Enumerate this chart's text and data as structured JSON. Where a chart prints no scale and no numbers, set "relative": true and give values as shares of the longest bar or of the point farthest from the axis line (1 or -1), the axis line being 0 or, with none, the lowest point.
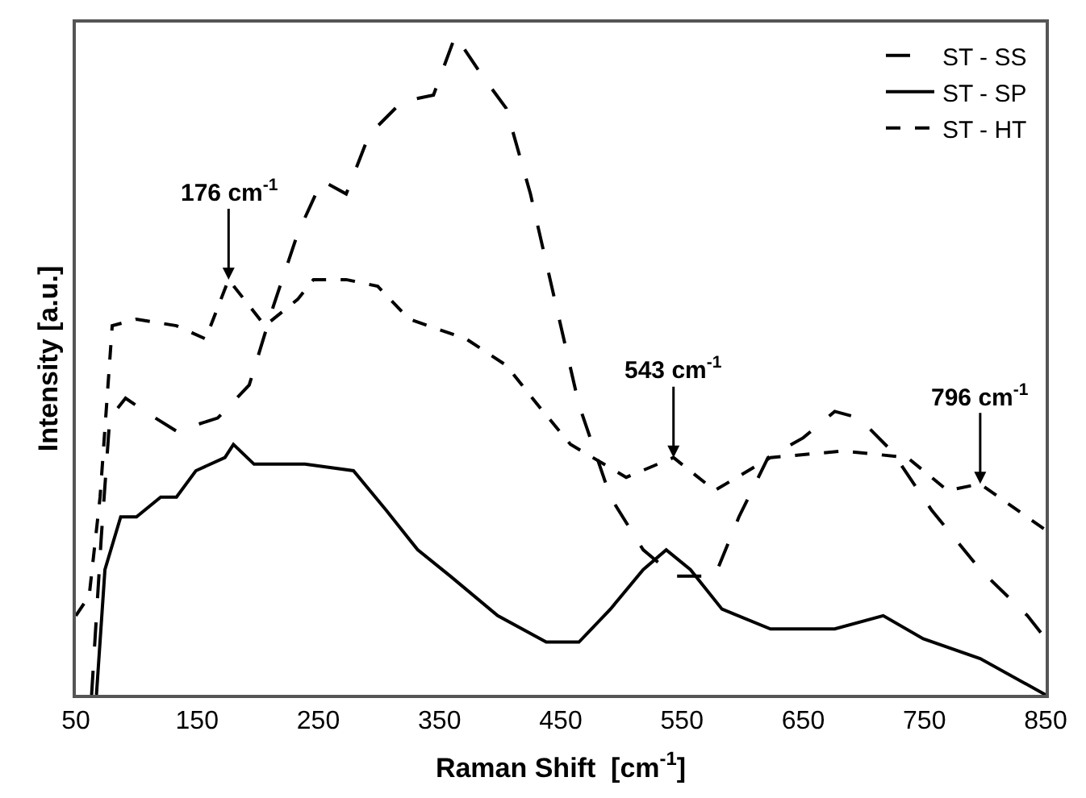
{
  "chart_data": {
    "type": "line",
    "relative": true,
    "xlabel": "Raman Shift  [cm$^{-1}$]",
    "ylabel": "Intensity [a.u.]",
    "xlim": [
      50,
      850
    ],
    "xticks": [
      50,
      150,
      250,
      350,
      450,
      550,
      650,
      750,
      850
    ],
    "legend": "top right",
    "marker": "none",
    "series": [
      {
        "name": "ST - SS",
        "color": "#000000",
        "line_style": "longdash",
        "x": [
          63,
          71,
          78,
          91,
          107,
          133,
          167,
          193,
          213,
          233,
          253,
          273,
          292,
          319,
          345,
          363,
          385,
          405,
          425,
          445,
          465,
          491,
          518,
          544,
          577,
          597,
          621,
          650,
          676,
          696,
          723,
          756,
          796,
          835,
          850
        ],
        "values": [
          0,
          0.24,
          0.42,
          0.45,
          0.43,
          0.4,
          0.42,
          0.47,
          0.59,
          0.7,
          0.78,
          0.76,
          0.85,
          0.9,
          0.91,
          1.0,
          0.94,
          0.89,
          0.76,
          0.6,
          0.44,
          0.3,
          0.22,
          0.18,
          0.18,
          0.27,
          0.36,
          0.39,
          0.43,
          0.42,
          0.37,
          0.28,
          0.19,
          0.12,
          0.085
        ]
      },
      {
        "name": "ST - SP",
        "color": "#000000",
        "line_style": "solid",
        "x": [
          67,
          74,
          87,
          100,
          120,
          133,
          149,
          173,
          180,
          197,
          239,
          279,
          306,
          332,
          359,
          398,
          438,
          465,
          491,
          518,
          537,
          557,
          583,
          623,
          676,
          716,
          749,
          796,
          850
        ],
        "values": [
          0,
          0.19,
          0.27,
          0.27,
          0.3,
          0.3,
          0.34,
          0.36,
          0.38,
          0.35,
          0.35,
          0.34,
          0.28,
          0.22,
          0.18,
          0.12,
          0.08,
          0.08,
          0.13,
          0.19,
          0.22,
          0.19,
          0.13,
          0.1,
          0.1,
          0.12,
          0.085,
          0.055,
          0
        ]
      },
      {
        "name": "ST - HT",
        "color": "#000000",
        "line_style": "dashed",
        "x": [
          50,
          61,
          70,
          80,
          100,
          133,
          157,
          176,
          206,
          233,
          246,
          273,
          299,
          325,
          372,
          405,
          431,
          458,
          504,
          543,
          577,
          623,
          683,
          736,
          769,
          796,
          850
        ],
        "values": [
          0.12,
          0.15,
          0.3,
          0.56,
          0.57,
          0.56,
          0.54,
          0.63,
          0.56,
          0.6,
          0.63,
          0.63,
          0.62,
          0.57,
          0.54,
          0.5,
          0.44,
          0.38,
          0.33,
          0.36,
          0.31,
          0.36,
          0.37,
          0.36,
          0.31,
          0.32,
          0.25
        ]
      }
    ],
    "annotations": [
      {
        "text": "176 cm$^{-1}$",
        "x": 176,
        "y": 0.63
      },
      {
        "text": "543 cm$^{-1}$",
        "x": 543,
        "y": 0.36
      },
      {
        "text": "796 cm$^{-1}$",
        "x": 796,
        "y": 0.32
      }
    ]
  }
}
